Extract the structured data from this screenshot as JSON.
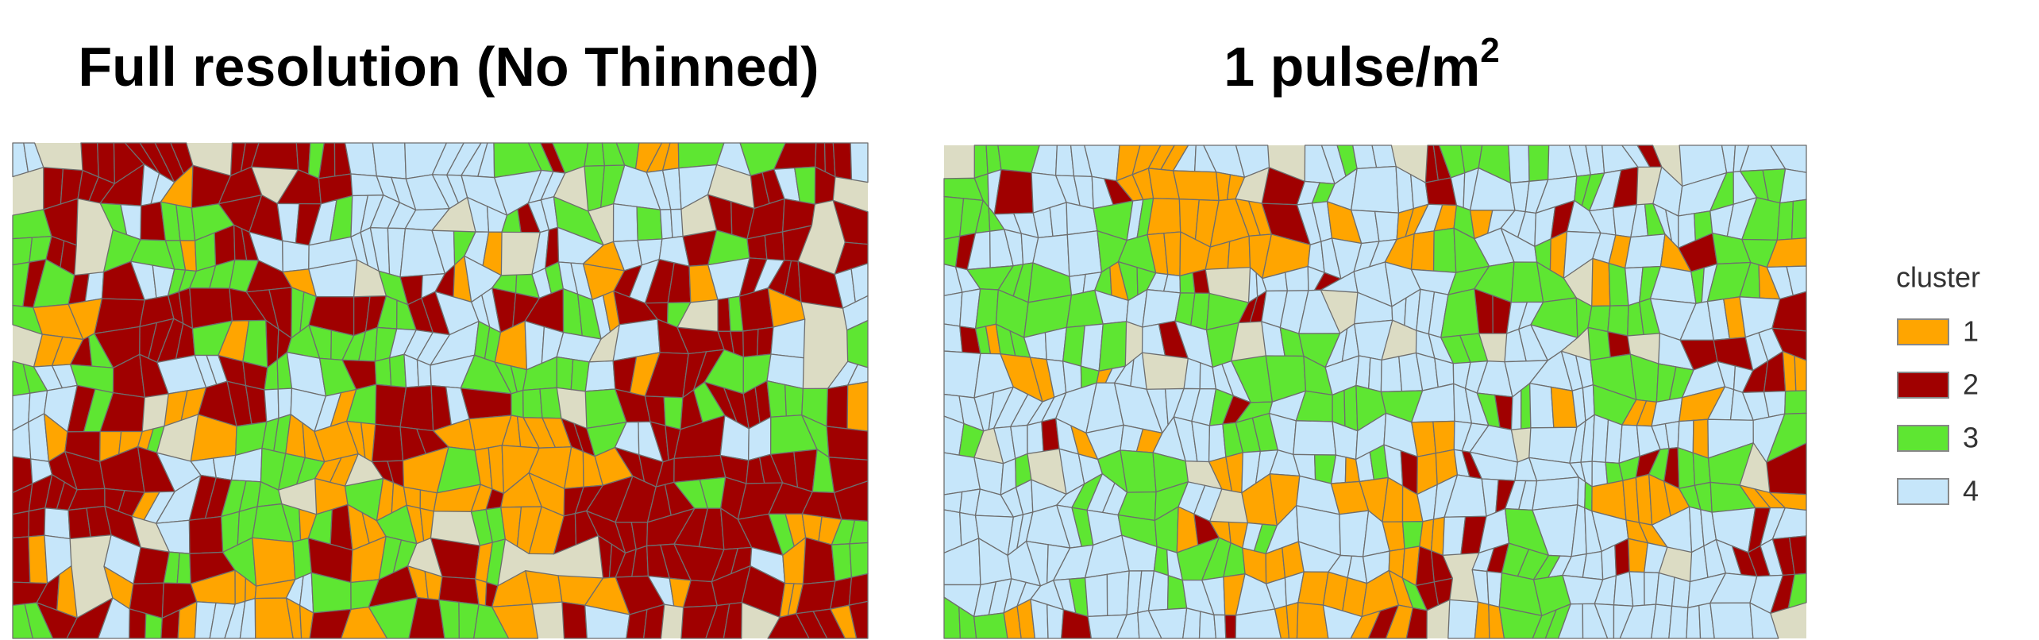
{
  "panels": [
    {
      "title": {
        "text": "Full resolution (No Thinned)"
      }
    },
    {
      "title": {
        "text": "1 pulse/m",
        "superscript": "2"
      }
    }
  ],
  "legend": {
    "title": "cluster",
    "items": [
      {
        "label": "1",
        "color": "#ffa500"
      },
      {
        "label": "2",
        "color": "#a00000"
      },
      {
        "label": "3",
        "color": "#5ee632"
      },
      {
        "label": "4",
        "color": "#c6e6fa"
      }
    ]
  }
}
